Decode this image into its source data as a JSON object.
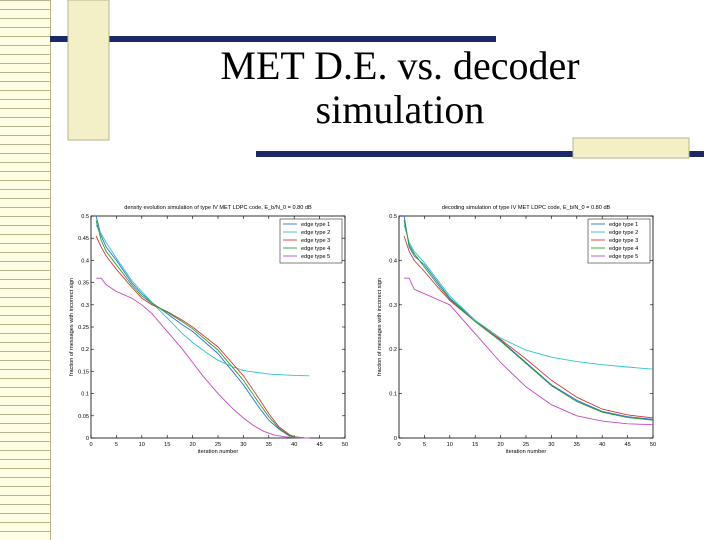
{
  "slide": {
    "title_line1": "MET D.E. vs. decoder",
    "title_line2": "simulation"
  },
  "colors": {
    "title_bar": "#1a2a66",
    "stripe_fill": "#fffde4",
    "stripe_border": "#b8b48a",
    "square_fill": "#f3f0c8",
    "axis": "#000000",
    "series": [
      "#2f6fd0",
      "#2fc4c4",
      "#d03a3a",
      "#2aa02a",
      "#c04ac8"
    ]
  },
  "chart_data": [
    {
      "type": "line",
      "title": "density evolution simulation of type IV MET LDPC code, E_b/N_0 = 0.80 dB",
      "xlabel": "iteration number",
      "ylabel": "fraction of messages with incorrect sign",
      "xlim": [
        0,
        50
      ],
      "ylim": [
        0,
        0.5
      ],
      "xticks": [
        0,
        5,
        10,
        15,
        20,
        25,
        30,
        35,
        40,
        45,
        50
      ],
      "yticks": [
        0,
        0.05,
        0.1,
        0.15,
        0.2,
        0.25,
        0.3,
        0.35,
        0.4,
        0.45,
        0.5
      ],
      "grid": false,
      "legend_position": "top-right",
      "series": [
        {
          "name": "edge type 1",
          "x": [
            1,
            2,
            3,
            5,
            8,
            10,
            12,
            15,
            18,
            20,
            25,
            30,
            33,
            35,
            37,
            39,
            40,
            42,
            43
          ],
          "y": [
            0.5,
            0.455,
            0.43,
            0.4,
            0.35,
            0.325,
            0.305,
            0.28,
            0.255,
            0.24,
            0.19,
            0.12,
            0.07,
            0.04,
            0.02,
            0.005,
            0.002,
            0.0,
            0.0
          ]
        },
        {
          "name": "edge type 2",
          "x": [
            1,
            2,
            3,
            5,
            8,
            10,
            12,
            15,
            18,
            20,
            23,
            25,
            28,
            30,
            35,
            40,
            43
          ],
          "y": [
            0.48,
            0.46,
            0.44,
            0.405,
            0.355,
            0.33,
            0.305,
            0.27,
            0.235,
            0.215,
            0.19,
            0.175,
            0.16,
            0.152,
            0.144,
            0.141,
            0.14
          ]
        },
        {
          "name": "edge type 3",
          "x": [
            1,
            2,
            3,
            5,
            8,
            10,
            12,
            15,
            18,
            20,
            25,
            30,
            33,
            35,
            37,
            39,
            40,
            42,
            43
          ],
          "y": [
            0.455,
            0.43,
            0.41,
            0.38,
            0.34,
            0.315,
            0.3,
            0.285,
            0.265,
            0.25,
            0.205,
            0.14,
            0.09,
            0.055,
            0.025,
            0.008,
            0.003,
            0.0,
            0.0
          ]
        },
        {
          "name": "edge type 4",
          "x": [
            1,
            2,
            3,
            5,
            8,
            10,
            12,
            15,
            18,
            20,
            25,
            30,
            33,
            35,
            37,
            39,
            40,
            42,
            43
          ],
          "y": [
            0.49,
            0.445,
            0.42,
            0.39,
            0.345,
            0.32,
            0.303,
            0.283,
            0.262,
            0.246,
            0.198,
            0.13,
            0.08,
            0.048,
            0.022,
            0.006,
            0.002,
            0.0,
            0.0
          ]
        },
        {
          "name": "edge type 5",
          "x": [
            1,
            2,
            3,
            5,
            8,
            10,
            12,
            15,
            18,
            20,
            22,
            25,
            28,
            30,
            32,
            34,
            36,
            38,
            40,
            42,
            43
          ],
          "y": [
            0.36,
            0.36,
            0.345,
            0.33,
            0.315,
            0.3,
            0.28,
            0.24,
            0.2,
            0.17,
            0.14,
            0.1,
            0.065,
            0.045,
            0.028,
            0.015,
            0.007,
            0.003,
            0.001,
            0.0,
            0.0
          ]
        }
      ]
    },
    {
      "type": "line",
      "title": "decoding simulation of type IV MET LDPC code, E_b/N_0 = 0.80 dB",
      "xlabel": "iteration number",
      "ylabel": "fraction of messages with incorrect sign",
      "xlim": [
        0,
        50
      ],
      "ylim": [
        0,
        0.5
      ],
      "xticks": [
        0,
        5,
        10,
        15,
        20,
        25,
        30,
        35,
        40,
        45,
        50
      ],
      "yticks": [
        0,
        0.1,
        0.2,
        0.3,
        0.4,
        0.5
      ],
      "grid": false,
      "legend_position": "top-right",
      "series": [
        {
          "name": "edge type 1",
          "x": [
            1,
            2,
            3,
            5,
            8,
            10,
            15,
            20,
            25,
            30,
            35,
            40,
            45,
            50
          ],
          "y": [
            0.5,
            0.43,
            0.41,
            0.39,
            0.345,
            0.315,
            0.265,
            0.22,
            0.17,
            0.12,
            0.085,
            0.06,
            0.048,
            0.042
          ]
        },
        {
          "name": "edge type 2",
          "x": [
            1,
            2,
            3,
            5,
            8,
            10,
            15,
            20,
            25,
            30,
            35,
            40,
            45,
            50
          ],
          "y": [
            0.48,
            0.44,
            0.42,
            0.395,
            0.35,
            0.32,
            0.265,
            0.225,
            0.198,
            0.182,
            0.172,
            0.165,
            0.16,
            0.155
          ]
        },
        {
          "name": "edge type 3",
          "x": [
            1,
            2,
            3,
            5,
            8,
            10,
            15,
            20,
            25,
            30,
            35,
            40,
            45,
            50
          ],
          "y": [
            0.455,
            0.42,
            0.4,
            0.375,
            0.335,
            0.31,
            0.262,
            0.222,
            0.178,
            0.13,
            0.092,
            0.065,
            0.052,
            0.045
          ]
        },
        {
          "name": "edge type 4",
          "x": [
            1,
            2,
            3,
            5,
            8,
            10,
            15,
            20,
            25,
            30,
            35,
            40,
            45,
            50
          ],
          "y": [
            0.49,
            0.435,
            0.415,
            0.385,
            0.34,
            0.313,
            0.262,
            0.218,
            0.168,
            0.118,
            0.082,
            0.058,
            0.046,
            0.04
          ]
        },
        {
          "name": "edge type 5",
          "x": [
            1,
            2,
            3,
            5,
            8,
            10,
            15,
            20,
            25,
            30,
            35,
            40,
            45,
            50
          ],
          "y": [
            0.36,
            0.36,
            0.335,
            0.325,
            0.31,
            0.3,
            0.235,
            0.17,
            0.115,
            0.075,
            0.05,
            0.038,
            0.032,
            0.03
          ]
        }
      ]
    }
  ]
}
